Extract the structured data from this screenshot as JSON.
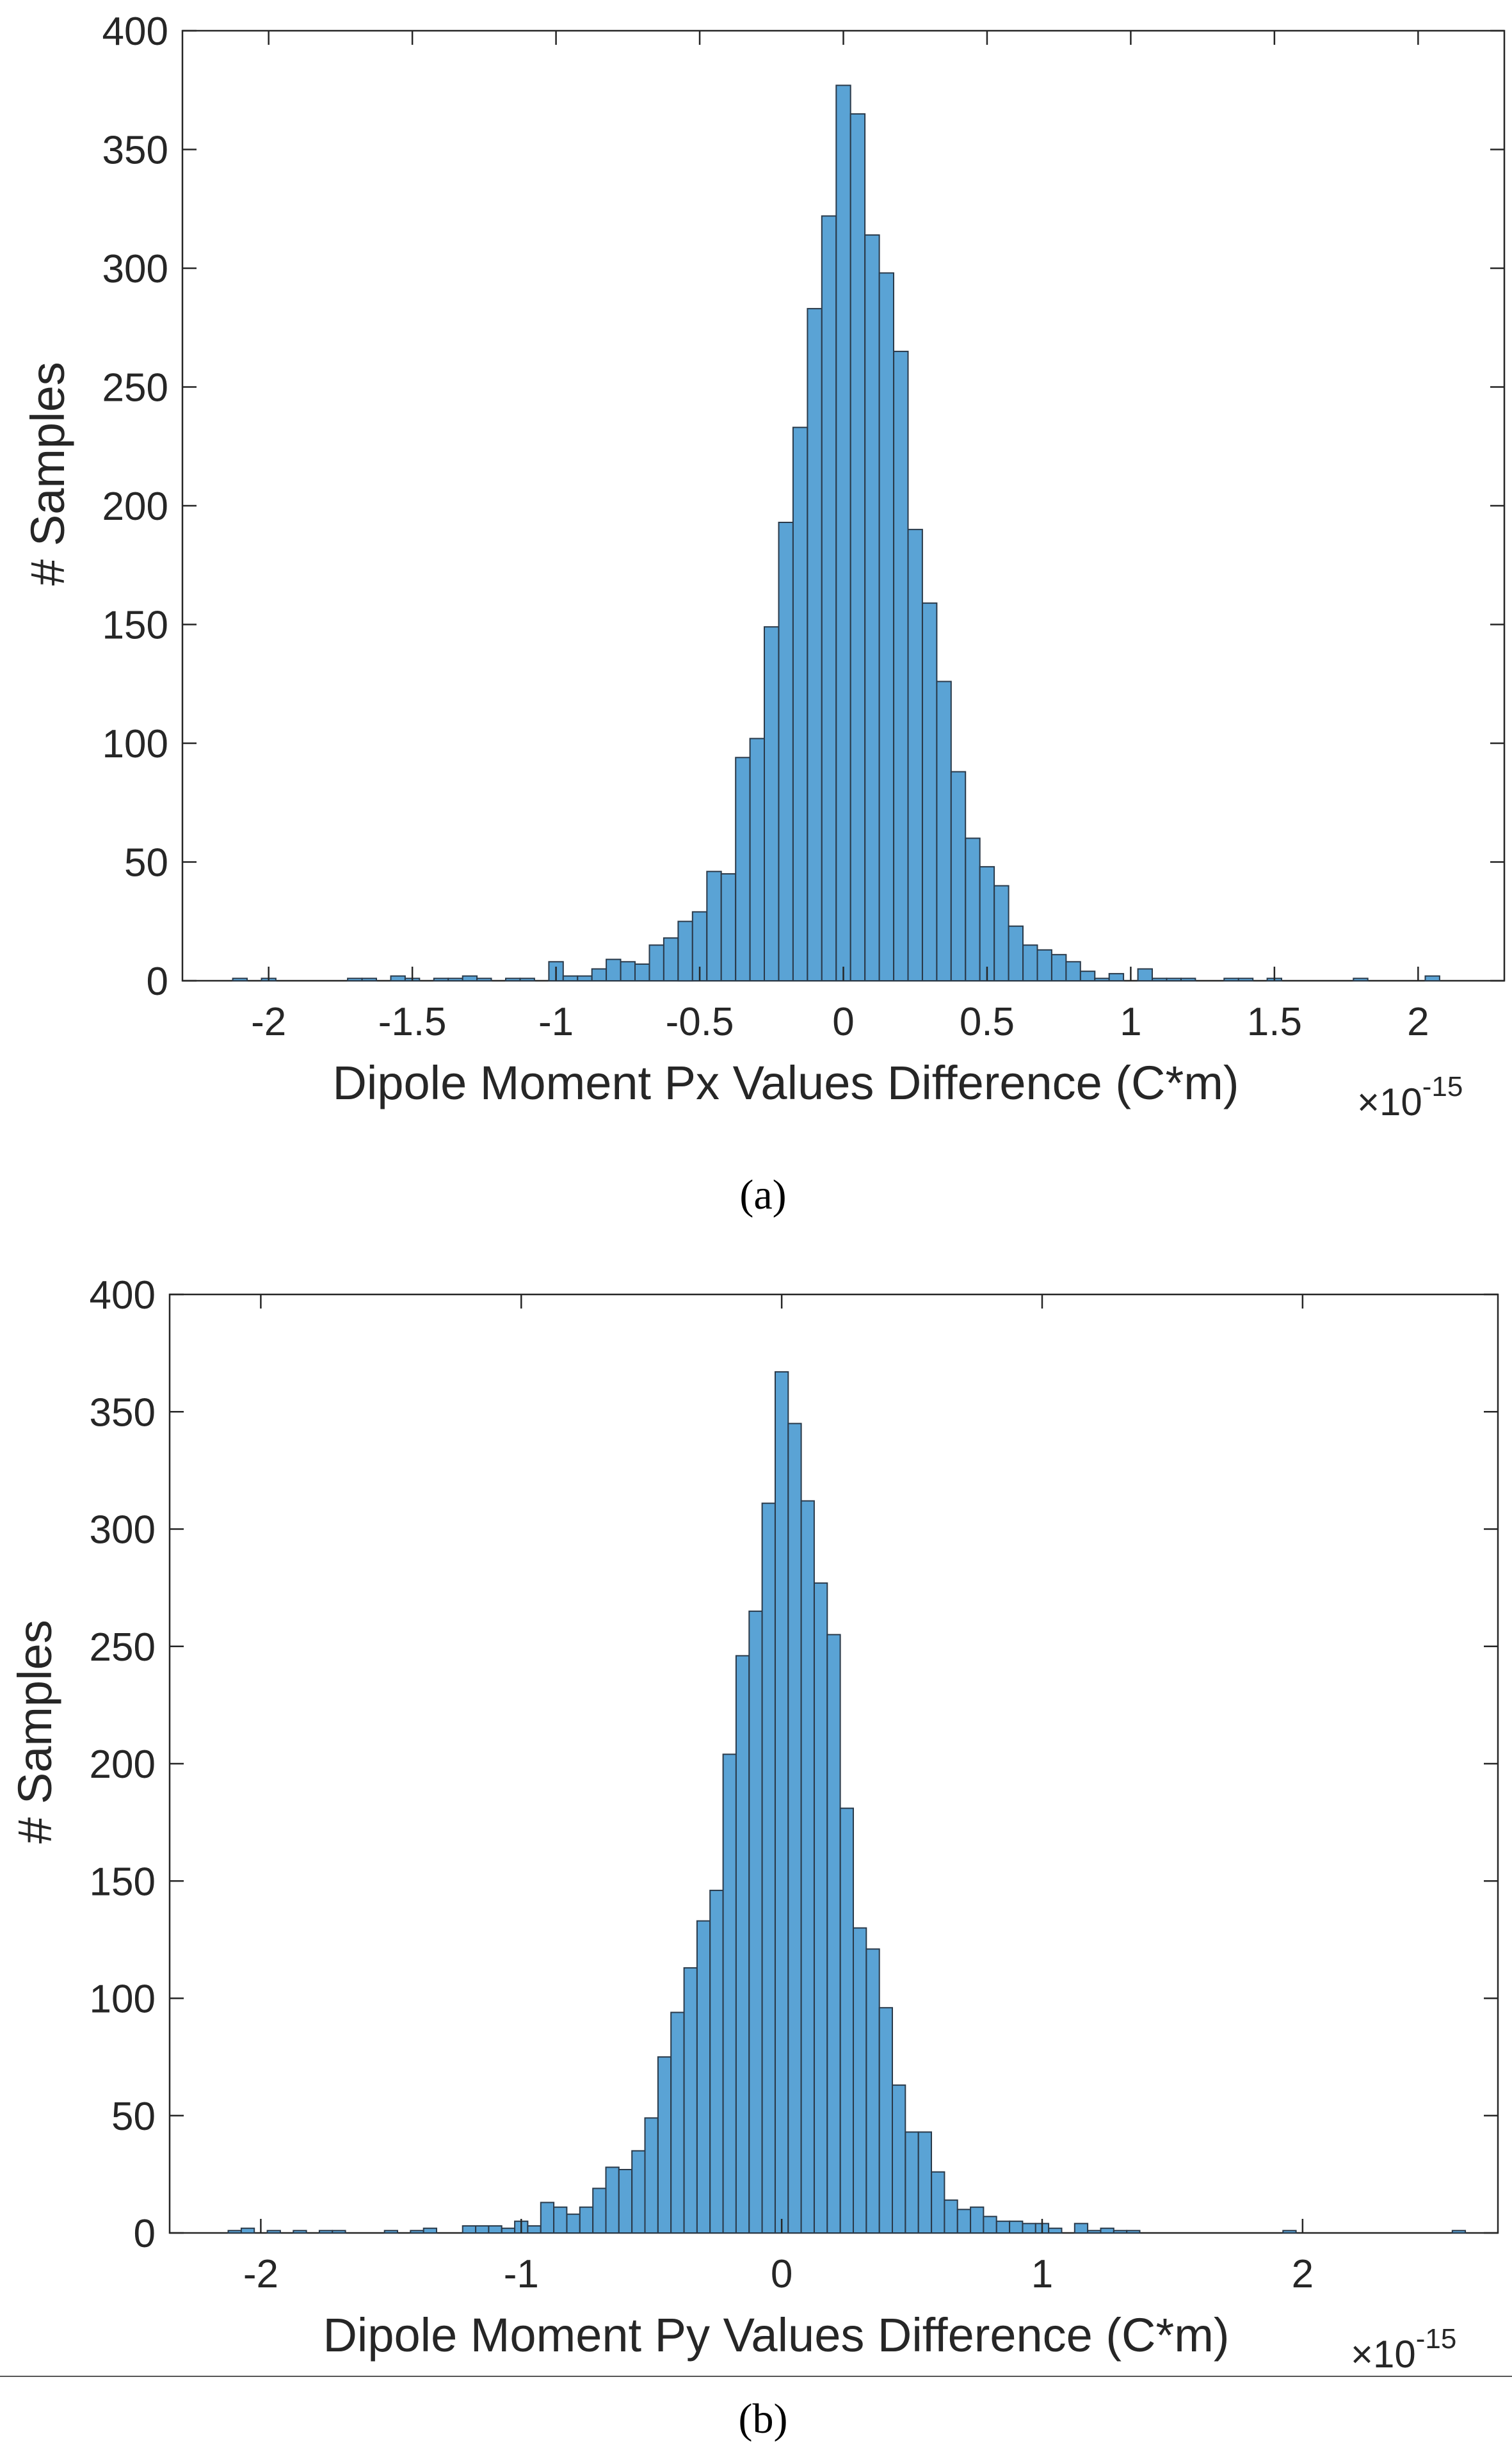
{
  "chart_data": [
    {
      "type": "bar",
      "panel_label": "a",
      "xlabel": "Dipole Moment Px Values Difference (C*m)",
      "xexponent": "×10",
      "xexponent_power": "-15",
      "ylabel": "# Samples",
      "xlim": [
        -2.3,
        2.3
      ],
      "ylim": [
        0,
        400
      ],
      "xticks": [
        -2,
        -1.5,
        -1,
        -0.5,
        0,
        0.5,
        1,
        1.5,
        2
      ],
      "xtick_labels": [
        "-2",
        "-1.5",
        "-1",
        "-0.5",
        "0",
        "0.5",
        "1",
        "1.5",
        "2"
      ],
      "yticks": [
        0,
        50,
        100,
        150,
        200,
        250,
        300,
        350,
        400
      ],
      "ytick_labels": [
        "0",
        "50",
        "100",
        "150",
        "200",
        "250",
        "300",
        "350",
        "400"
      ],
      "grid": false,
      "bar_color": "#5aa3d5",
      "edge_color": "#2a3a4a",
      "bin_width": 0.05,
      "x": [
        -2.1,
        -2.0,
        -1.7,
        -1.65,
        -1.55,
        -1.5,
        -1.4,
        -1.35,
        -1.3,
        -1.25,
        -1.15,
        -1.1,
        -1.0,
        -0.95,
        -0.9,
        -0.85,
        -0.8,
        -0.75,
        -0.7,
        -0.65,
        -0.6,
        -0.55,
        -0.5,
        -0.45,
        -0.4,
        -0.35,
        -0.3,
        -0.25,
        -0.2,
        -0.15,
        -0.1,
        -0.05,
        0.0,
        0.05,
        0.1,
        0.15,
        0.2,
        0.25,
        0.3,
        0.35,
        0.4,
        0.45,
        0.5,
        0.55,
        0.6,
        0.65,
        0.7,
        0.75,
        0.8,
        0.85,
        0.9,
        0.95,
        1.05,
        1.1,
        1.15,
        1.2,
        1.35,
        1.4,
        1.5,
        1.8,
        2.05
      ],
      "values": [
        1,
        1,
        1,
        1,
        2,
        1,
        1,
        1,
        2,
        1,
        1,
        1,
        8,
        2,
        2,
        5,
        9,
        8,
        7,
        15,
        18,
        25,
        29,
        46,
        45,
        94,
        102,
        149,
        193,
        233,
        283,
        322,
        377,
        365,
        314,
        298,
        265,
        190,
        159,
        126,
        88,
        60,
        48,
        40,
        23,
        15,
        13,
        11,
        8,
        4,
        1,
        3,
        5,
        1,
        1,
        1,
        1,
        1,
        1,
        1,
        2
      ]
    },
    {
      "type": "bar",
      "panel_label": "b",
      "xlabel": "Dipole Moment Py Values Difference (C*m)",
      "xexponent": "×10",
      "xexponent_power": "-15",
      "ylabel": "# Samples",
      "xlim": [
        -2.35,
        2.75
      ],
      "ylim": [
        0,
        400
      ],
      "xticks": [
        -2,
        -1,
        0,
        1,
        2
      ],
      "xtick_labels": [
        "-2",
        "-1",
        "0",
        "1",
        "2"
      ],
      "yticks": [
        0,
        50,
        100,
        150,
        200,
        250,
        300,
        350,
        400
      ],
      "ytick_labels": [
        "0",
        "50",
        "100",
        "150",
        "200",
        "250",
        "300",
        "350",
        "400"
      ],
      "grid": false,
      "bar_color": "#5aa3d5",
      "edge_color": "#2a3a4a",
      "bin_width": 0.05,
      "x": [
        -2.1,
        -2.05,
        -1.95,
        -1.85,
        -1.75,
        -1.7,
        -1.5,
        -1.4,
        -1.35,
        -1.2,
        -1.15,
        -1.1,
        -1.05,
        -1.0,
        -0.95,
        -0.9,
        -0.85,
        -0.8,
        -0.75,
        -0.7,
        -0.65,
        -0.6,
        -0.55,
        -0.5,
        -0.45,
        -0.4,
        -0.35,
        -0.3,
        -0.25,
        -0.2,
        -0.15,
        -0.1,
        -0.05,
        0.0,
        0.05,
        0.1,
        0.15,
        0.2,
        0.25,
        0.3,
        0.35,
        0.4,
        0.45,
        0.5,
        0.55,
        0.6,
        0.65,
        0.7,
        0.75,
        0.8,
        0.85,
        0.9,
        0.95,
        1.0,
        1.05,
        1.15,
        1.2,
        1.25,
        1.3,
        1.35,
        1.95,
        2.6
      ],
      "values": [
        1,
        2,
        1,
        1,
        1,
        1,
        1,
        1,
        2,
        3,
        3,
        3,
        2,
        5,
        3,
        13,
        11,
        8,
        11,
        19,
        28,
        27,
        35,
        49,
        75,
        94,
        113,
        133,
        146,
        204,
        246,
        265,
        311,
        367,
        345,
        312,
        277,
        255,
        181,
        130,
        121,
        96,
        63,
        43,
        43,
        26,
        14,
        10,
        11,
        7,
        5,
        5,
        4,
        4,
        2,
        4,
        1,
        2,
        1,
        1,
        1,
        1
      ]
    }
  ],
  "captions": {
    "a": "(a)",
    "b": "(b)"
  }
}
